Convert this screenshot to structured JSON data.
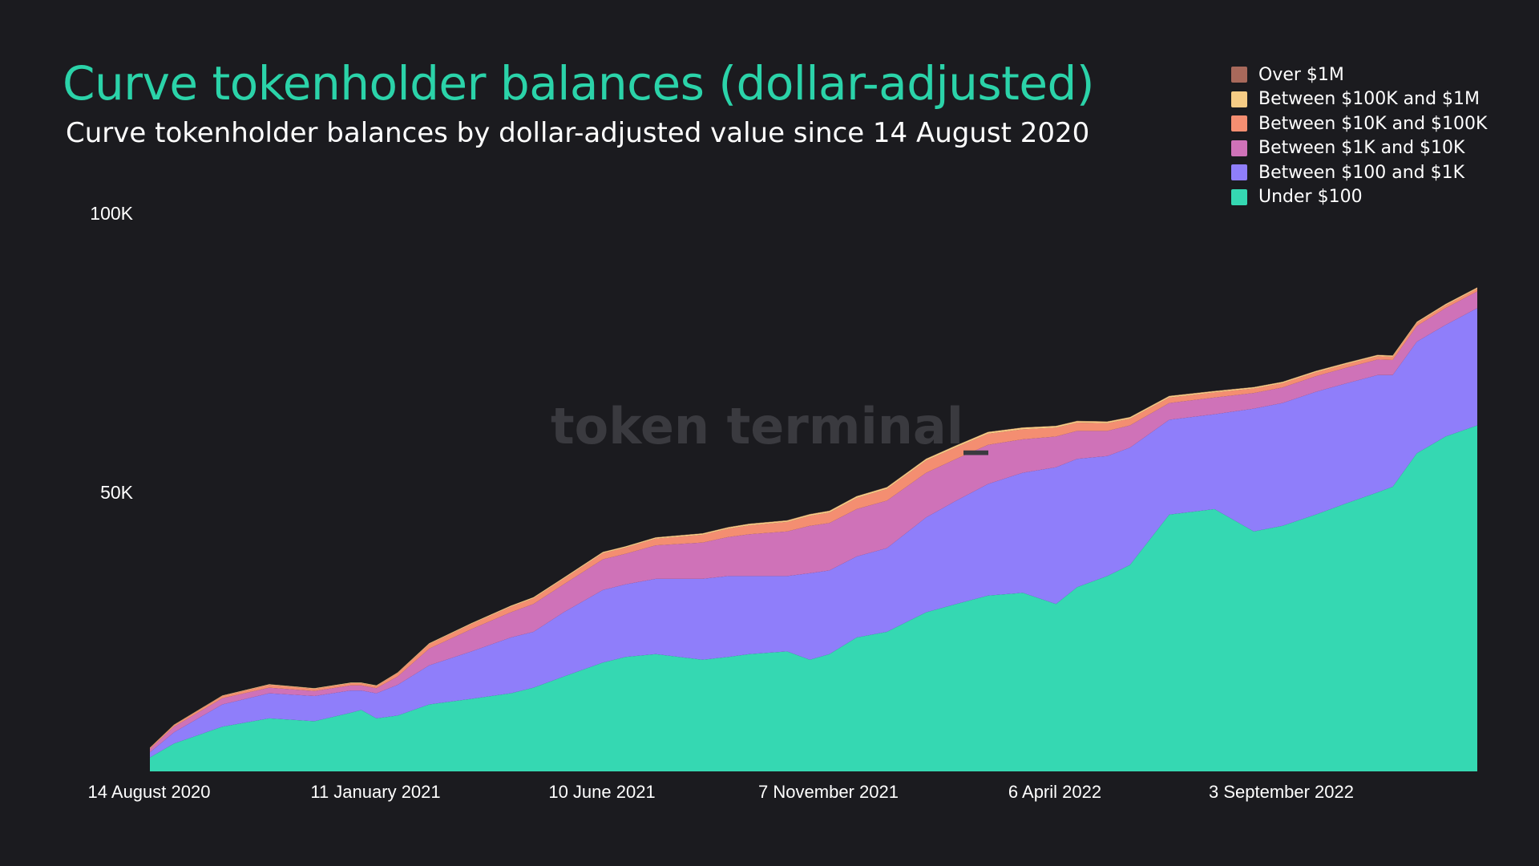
{
  "title": "Curve tokenholder balances (dollar-adjusted)",
  "subtitle": "Curve tokenholder balances by dollar-adjusted value since 14 August 2020",
  "watermark": "token terminal_",
  "colors": {
    "title": "#2bd3a9",
    "background": "#1b1b1f",
    "text": "#ffffff"
  },
  "legend": [
    {
      "label": "Over $1M",
      "color": "#a8695b"
    },
    {
      "label": "Between $100K and $1M",
      "color": "#f6cc85"
    },
    {
      "label": "Between $10K and $100K",
      "color": "#f48e71"
    },
    {
      "label": "Between $1K and $10K",
      "color": "#cf72b8"
    },
    {
      "label": "Between $100 and $1K",
      "color": "#8f7efa"
    },
    {
      "label": "Under $100",
      "color": "#35d8b2"
    }
  ],
  "chart_data": {
    "type": "area",
    "stacked": true,
    "x_ticks": [
      "14 August 2020",
      "11 January 2021",
      "10 June 2021",
      "7 November 2021",
      "6 April 2022",
      "3 September 2022"
    ],
    "y_ticks": [
      "100K",
      "50K"
    ],
    "y_tick_values": [
      100000,
      50000
    ],
    "ylim": [
      0,
      100000
    ],
    "xlim": [
      "2020-08-14",
      "2023-01-10"
    ],
    "x": [
      "2020-08-14",
      "2020-08-30",
      "2020-10-01",
      "2020-11-01",
      "2020-12-01",
      "2020-12-25",
      "2021-01-01",
      "2021-01-11",
      "2021-01-25",
      "2021-02-15",
      "2021-03-15",
      "2021-04-10",
      "2021-04-25",
      "2021-05-15",
      "2021-06-10",
      "2021-06-25",
      "2021-07-15",
      "2021-08-15",
      "2021-09-01",
      "2021-09-15",
      "2021-10-10",
      "2021-10-25",
      "2021-11-07",
      "2021-11-25",
      "2021-12-15",
      "2022-01-10",
      "2022-01-30",
      "2022-02-20",
      "2022-03-15",
      "2022-04-06",
      "2022-04-20",
      "2022-05-10",
      "2022-05-25",
      "2022-06-20",
      "2022-07-20",
      "2022-08-15",
      "2022-09-03",
      "2022-09-25",
      "2022-10-15",
      "2022-11-05",
      "2022-11-15",
      "2022-12-01",
      "2022-12-20",
      "2023-01-10"
    ],
    "series": [
      {
        "name": "Under $100",
        "color": "#35d8b2",
        "values": [
          2500,
          5000,
          8000,
          9500,
          9000,
          10500,
          11000,
          9500,
          10000,
          12000,
          13000,
          14000,
          15000,
          17000,
          19500,
          20500,
          21000,
          20000,
          20500,
          21000,
          21500,
          20000,
          21000,
          24000,
          25000,
          28500,
          30000,
          31500,
          32000,
          30000,
          33000,
          35000,
          37000,
          46000,
          47000,
          43000,
          44000,
          46000,
          48000,
          50000,
          51000,
          57000,
          60000,
          62000
        ]
      },
      {
        "name": "Between $100 and $1K",
        "color": "#8f7efa",
        "values": [
          900,
          2000,
          4000,
          4500,
          4500,
          4000,
          3500,
          4500,
          5500,
          7000,
          8500,
          10000,
          10000,
          11500,
          13000,
          13000,
          13500,
          14500,
          14500,
          14000,
          13500,
          15500,
          15000,
          14500,
          15000,
          17000,
          18500,
          20000,
          21500,
          24500,
          23000,
          21500,
          21000,
          17000,
          17000,
          22000,
          22000,
          22000,
          21500,
          21000,
          20000,
          20000,
          20000,
          21000
        ]
      },
      {
        "name": "Between $1K and $10K",
        "color": "#cf72b8",
        "values": [
          600,
          1000,
          1100,
          1000,
          900,
          900,
          900,
          900,
          1500,
          3000,
          4000,
          4500,
          5000,
          5000,
          5500,
          5500,
          6000,
          6500,
          7000,
          7500,
          8000,
          8500,
          8500,
          8500,
          8500,
          8000,
          7500,
          7000,
          6000,
          5500,
          5000,
          4500,
          4000,
          3000,
          3000,
          2800,
          2800,
          2800,
          2800,
          2800,
          2700,
          2800,
          3000,
          3000
        ]
      },
      {
        "name": "Between $10K and $100K",
        "color": "#f48e71",
        "values": [
          200,
          300,
          400,
          500,
          400,
          400,
          400,
          400,
          600,
          800,
          900,
          1000,
          1000,
          1000,
          1100,
          1100,
          1200,
          1400,
          1500,
          1600,
          1700,
          1800,
          1900,
          2000,
          2100,
          2200,
          2100,
          2000,
          1800,
          1600,
          1500,
          1400,
          1200,
          1000,
          900,
          800,
          750,
          700,
          650,
          600,
          580,
          550,
          520,
          500
        ]
      },
      {
        "name": "Between $100K and $1M",
        "color": "#f6cc85",
        "values": [
          50,
          70,
          90,
          100,
          100,
          100,
          100,
          100,
          120,
          150,
          170,
          180,
          190,
          200,
          210,
          210,
          220,
          230,
          240,
          250,
          260,
          270,
          280,
          290,
          300,
          300,
          300,
          300,
          290,
          280,
          280,
          270,
          260,
          250,
          240,
          230,
          230,
          220,
          220,
          210,
          210,
          200,
          200,
          200
        ]
      },
      {
        "name": "Over $1M",
        "color": "#a8695b",
        "values": [
          10,
          15,
          20,
          20,
          20,
          20,
          20,
          20,
          25,
          30,
          30,
          35,
          35,
          40,
          40,
          40,
          40,
          45,
          45,
          45,
          45,
          50,
          50,
          50,
          50,
          50,
          50,
          50,
          50,
          50,
          50,
          50,
          50,
          45,
          45,
          45,
          45,
          45,
          45,
          45,
          45,
          45,
          45,
          45
        ]
      }
    ]
  }
}
